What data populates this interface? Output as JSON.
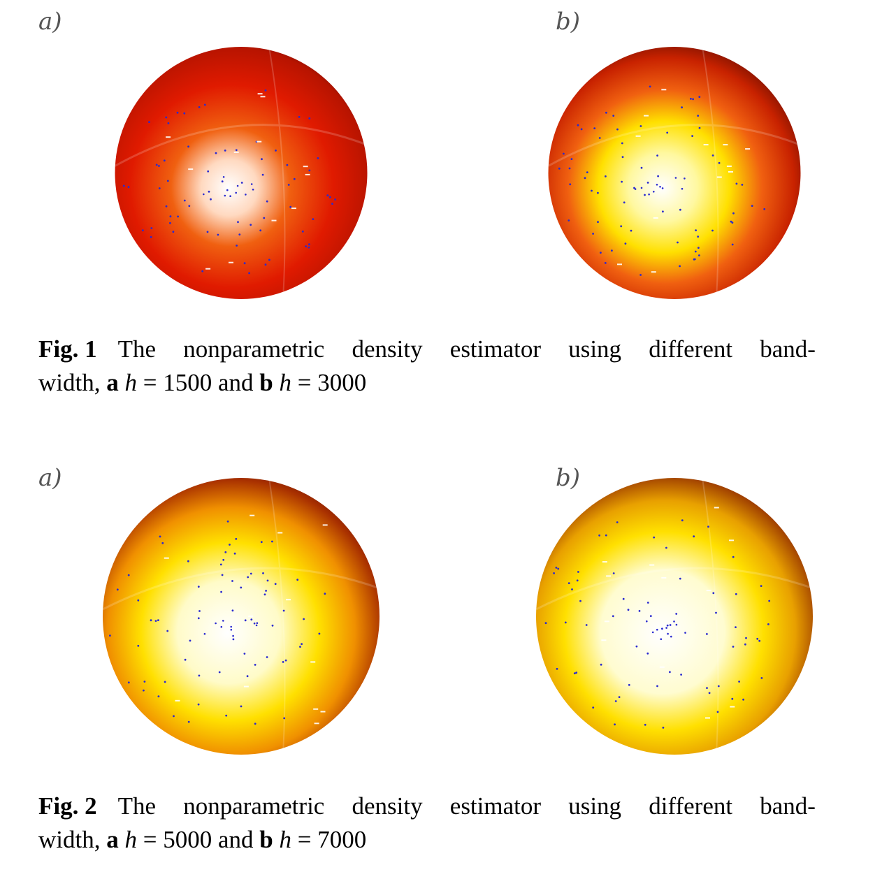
{
  "figures": [
    {
      "panels": [
        {
          "label": "a)",
          "density": "low",
          "h": 1500
        },
        {
          "label": "b)",
          "density": "mid",
          "h": 3000
        }
      ],
      "caption": {
        "fig_label": "Fig. 1",
        "line1_words": [
          "The",
          "nonparametric",
          "density",
          "estimator",
          "using",
          "different",
          "band-"
        ],
        "line2": {
          "pre": "width, ",
          "a": "a",
          "h1": "h",
          "eq1": " = 1500 and ",
          "b": "b",
          "h2": "h",
          "eq2": " = 3000"
        }
      }
    },
    {
      "panels": [
        {
          "label": "a)",
          "density": "high",
          "h": 5000
        },
        {
          "label": "b)",
          "density": "veryhigh",
          "h": 7000
        }
      ],
      "caption": {
        "fig_label": "Fig. 2",
        "line1_words": [
          "The",
          "nonparametric",
          "density",
          "estimator",
          "using",
          "different",
          "band-"
        ],
        "line2": {
          "pre": "width, ",
          "a": "a",
          "h1": "h",
          "eq1": " = 5000 and ",
          "b": "b",
          "h2": "h",
          "eq2": " = 7000"
        }
      }
    }
  ],
  "colors": {
    "sphere_dark": "#5a0a00",
    "sphere_red": "#e01a00",
    "sphere_orange": "#f06010",
    "sphere_yellow": "#ffe000",
    "sphere_white": "#ffffff",
    "point_blue": "#2a2ad0"
  }
}
